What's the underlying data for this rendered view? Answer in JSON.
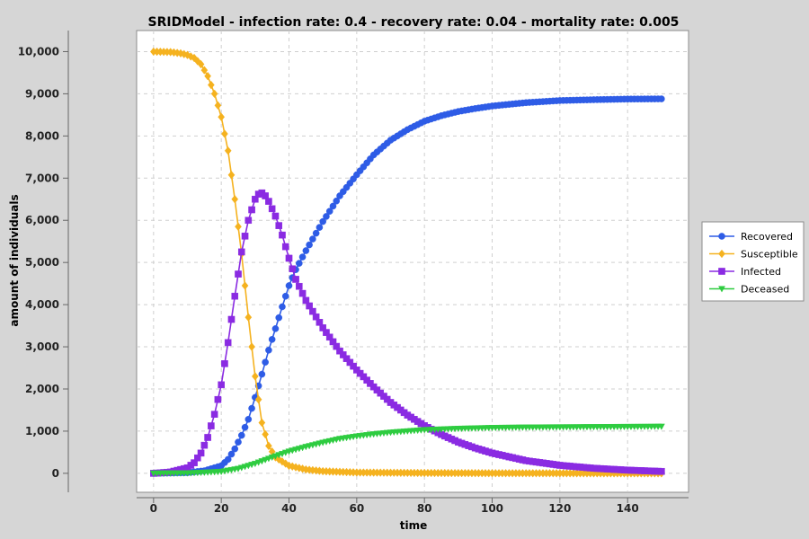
{
  "chart_data": {
    "type": "line",
    "title": "SRIDModel - infection rate: 0.4 - recovery rate: 0.04 - mortality rate: 0.005",
    "xlabel": "time",
    "ylabel": "amount of individuals",
    "xlim": [
      -5,
      158
    ],
    "ylim": [
      -450,
      10500
    ],
    "x_ticks": [
      0,
      20,
      40,
      60,
      80,
      100,
      120,
      140
    ],
    "y_ticks": [
      0,
      1000,
      2000,
      3000,
      4000,
      5000,
      6000,
      7000,
      8000,
      9000,
      10000
    ],
    "x_tick_labels": [
      "0",
      "20",
      "40",
      "60",
      "80",
      "100",
      "120",
      "140"
    ],
    "y_tick_labels": [
      "0",
      "1,000",
      "2,000",
      "3,000",
      "4,000",
      "5,000",
      "6,000",
      "7,000",
      "8,000",
      "9,000",
      "10,000"
    ],
    "grid": true,
    "legend_position": "right",
    "x": {
      "start": 0,
      "end": 150,
      "step": 1
    },
    "series": [
      {
        "name": "Recovered",
        "color": "#2e5ce6",
        "marker": "circle",
        "points": [
          [
            0,
            0
          ],
          [
            10,
            15
          ],
          [
            15,
            60
          ],
          [
            20,
            180
          ],
          [
            22,
            330
          ],
          [
            24,
            580
          ],
          [
            26,
            900
          ],
          [
            28,
            1280
          ],
          [
            30,
            1800
          ],
          [
            32,
            2350
          ],
          [
            34,
            2920
          ],
          [
            36,
            3430
          ],
          [
            38,
            3950
          ],
          [
            40,
            4450
          ],
          [
            42,
            4830
          ],
          [
            45,
            5280
          ],
          [
            50,
            5970
          ],
          [
            55,
            6580
          ],
          [
            60,
            7080
          ],
          [
            65,
            7550
          ],
          [
            70,
            7900
          ],
          [
            75,
            8150
          ],
          [
            80,
            8350
          ],
          [
            85,
            8480
          ],
          [
            90,
            8580
          ],
          [
            95,
            8650
          ],
          [
            100,
            8710
          ],
          [
            110,
            8790
          ],
          [
            120,
            8840
          ],
          [
            130,
            8860
          ],
          [
            140,
            8875
          ],
          [
            150,
            8880
          ]
        ]
      },
      {
        "name": "Susceptible",
        "color": "#f5b21f",
        "marker": "diamond",
        "points": [
          [
            0,
            10000
          ],
          [
            5,
            9990
          ],
          [
            8,
            9960
          ],
          [
            10,
            9920
          ],
          [
            12,
            9850
          ],
          [
            14,
            9700
          ],
          [
            16,
            9420
          ],
          [
            18,
            9000
          ],
          [
            20,
            8450
          ],
          [
            22,
            7650
          ],
          [
            24,
            6500
          ],
          [
            26,
            5200
          ],
          [
            28,
            3700
          ],
          [
            30,
            2300
          ],
          [
            32,
            1200
          ],
          [
            34,
            650
          ],
          [
            36,
            380
          ],
          [
            40,
            180
          ],
          [
            45,
            90
          ],
          [
            50,
            50
          ],
          [
            60,
            20
          ],
          [
            80,
            8
          ],
          [
            100,
            3
          ],
          [
            150,
            0
          ]
        ]
      },
      {
        "name": "Infected",
        "color": "#8a2be2",
        "marker": "square",
        "points": [
          [
            0,
            0
          ],
          [
            5,
            30
          ],
          [
            10,
            130
          ],
          [
            12,
            250
          ],
          [
            14,
            480
          ],
          [
            16,
            850
          ],
          [
            18,
            1400
          ],
          [
            20,
            2100
          ],
          [
            22,
            3100
          ],
          [
            24,
            4200
          ],
          [
            26,
            5250
          ],
          [
            28,
            6000
          ],
          [
            30,
            6500
          ],
          [
            31,
            6620
          ],
          [
            32,
            6650
          ],
          [
            33,
            6580
          ],
          [
            34,
            6450
          ],
          [
            36,
            6100
          ],
          [
            38,
            5650
          ],
          [
            40,
            5100
          ],
          [
            42,
            4600
          ],
          [
            45,
            4100
          ],
          [
            50,
            3450
          ],
          [
            55,
            2900
          ],
          [
            60,
            2450
          ],
          [
            65,
            2050
          ],
          [
            70,
            1680
          ],
          [
            75,
            1380
          ],
          [
            80,
            1130
          ],
          [
            85,
            920
          ],
          [
            90,
            740
          ],
          [
            95,
            600
          ],
          [
            100,
            480
          ],
          [
            110,
            300
          ],
          [
            120,
            190
          ],
          [
            130,
            120
          ],
          [
            140,
            75
          ],
          [
            150,
            45
          ]
        ]
      },
      {
        "name": "Deceased",
        "color": "#2ecc40",
        "marker": "triangle-down",
        "points": [
          [
            0,
            0
          ],
          [
            10,
            5
          ],
          [
            15,
            20
          ],
          [
            20,
            40
          ],
          [
            25,
            110
          ],
          [
            30,
            230
          ],
          [
            35,
            380
          ],
          [
            40,
            520
          ],
          [
            45,
            630
          ],
          [
            50,
            730
          ],
          [
            55,
            820
          ],
          [
            60,
            880
          ],
          [
            65,
            930
          ],
          [
            70,
            970
          ],
          [
            75,
            1000
          ],
          [
            80,
            1030
          ],
          [
            90,
            1060
          ],
          [
            100,
            1080
          ],
          [
            110,
            1090
          ],
          [
            120,
            1095
          ],
          [
            130,
            1100
          ],
          [
            140,
            1105
          ],
          [
            150,
            1110
          ]
        ]
      }
    ]
  }
}
